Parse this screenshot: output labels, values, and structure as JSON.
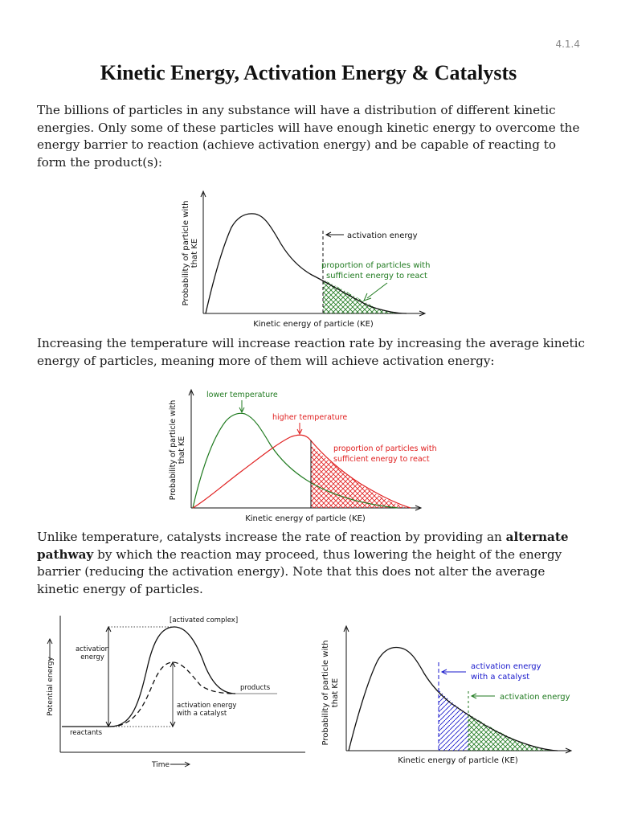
{
  "page_number": "4.1.4",
  "title": "Kinetic Energy, Activation Energy & Catalysts",
  "paragraphs": {
    "intro": "The billions of particles in any substance will have a distribution of different kinetic energies. Only some of these particles will have enough kinetic energy to overcome the energy barrier to reaction (achieve activation energy) and be capable of reacting to form the product(s):",
    "temperature": "Increasing the temperature will increase reaction rate by increasing the average kinetic energy of particles, meaning more of them will achieve activation energy:",
    "catalyst_before": "Unlike temperature, catalysts increase the rate of reaction by providing an ",
    "catalyst_bold": "alternate pathway",
    "catalyst_after": " by which the reaction may proceed, thus lowering the height of the energy barrier (reducing the activation energy). Note that this does not alter the average kinetic energy of particles."
  },
  "figure1": {
    "ylabel_line1": "Probability of particle with",
    "ylabel_line2": "that KE",
    "xlabel": "Kinetic energy of particle (KE)",
    "activation_label": "activation energy",
    "proportion_line1": "proportion of particles with",
    "proportion_line2": "sufficient energy to react"
  },
  "figure2": {
    "ylabel_line1": "Probability of particle with",
    "ylabel_line2": "that KE",
    "xlabel": "Kinetic energy of particle (KE)",
    "lower_temp_label": "lower temperature",
    "higher_temp_label": "higher temperature",
    "proportion_line1": "proportion of particles with",
    "proportion_line2": "sufficient energy to react"
  },
  "figure3": {
    "ylabel": "Potential energy",
    "xlabel": "Time",
    "activated_complex": "[activated complex]",
    "activation_line1": "activation",
    "activation_line2": "energy",
    "products": "products",
    "reactants": "reactants",
    "catalyst_line1": "activation energy",
    "catalyst_line2": "with a catalyst"
  },
  "figure4": {
    "ylabel_line1": "Probability of particle with",
    "ylabel_line2": "that KE",
    "xlabel": "Kinetic energy of particle (KE)",
    "catalyst_line1": "activation energy",
    "catalyst_line2": "with a catalyst",
    "activation_label": "activation energy"
  },
  "colors": {
    "green": "#1f7a1f",
    "red": "#e02020",
    "blue": "#1a1acc",
    "black": "#111111",
    "gray": "#999999"
  }
}
